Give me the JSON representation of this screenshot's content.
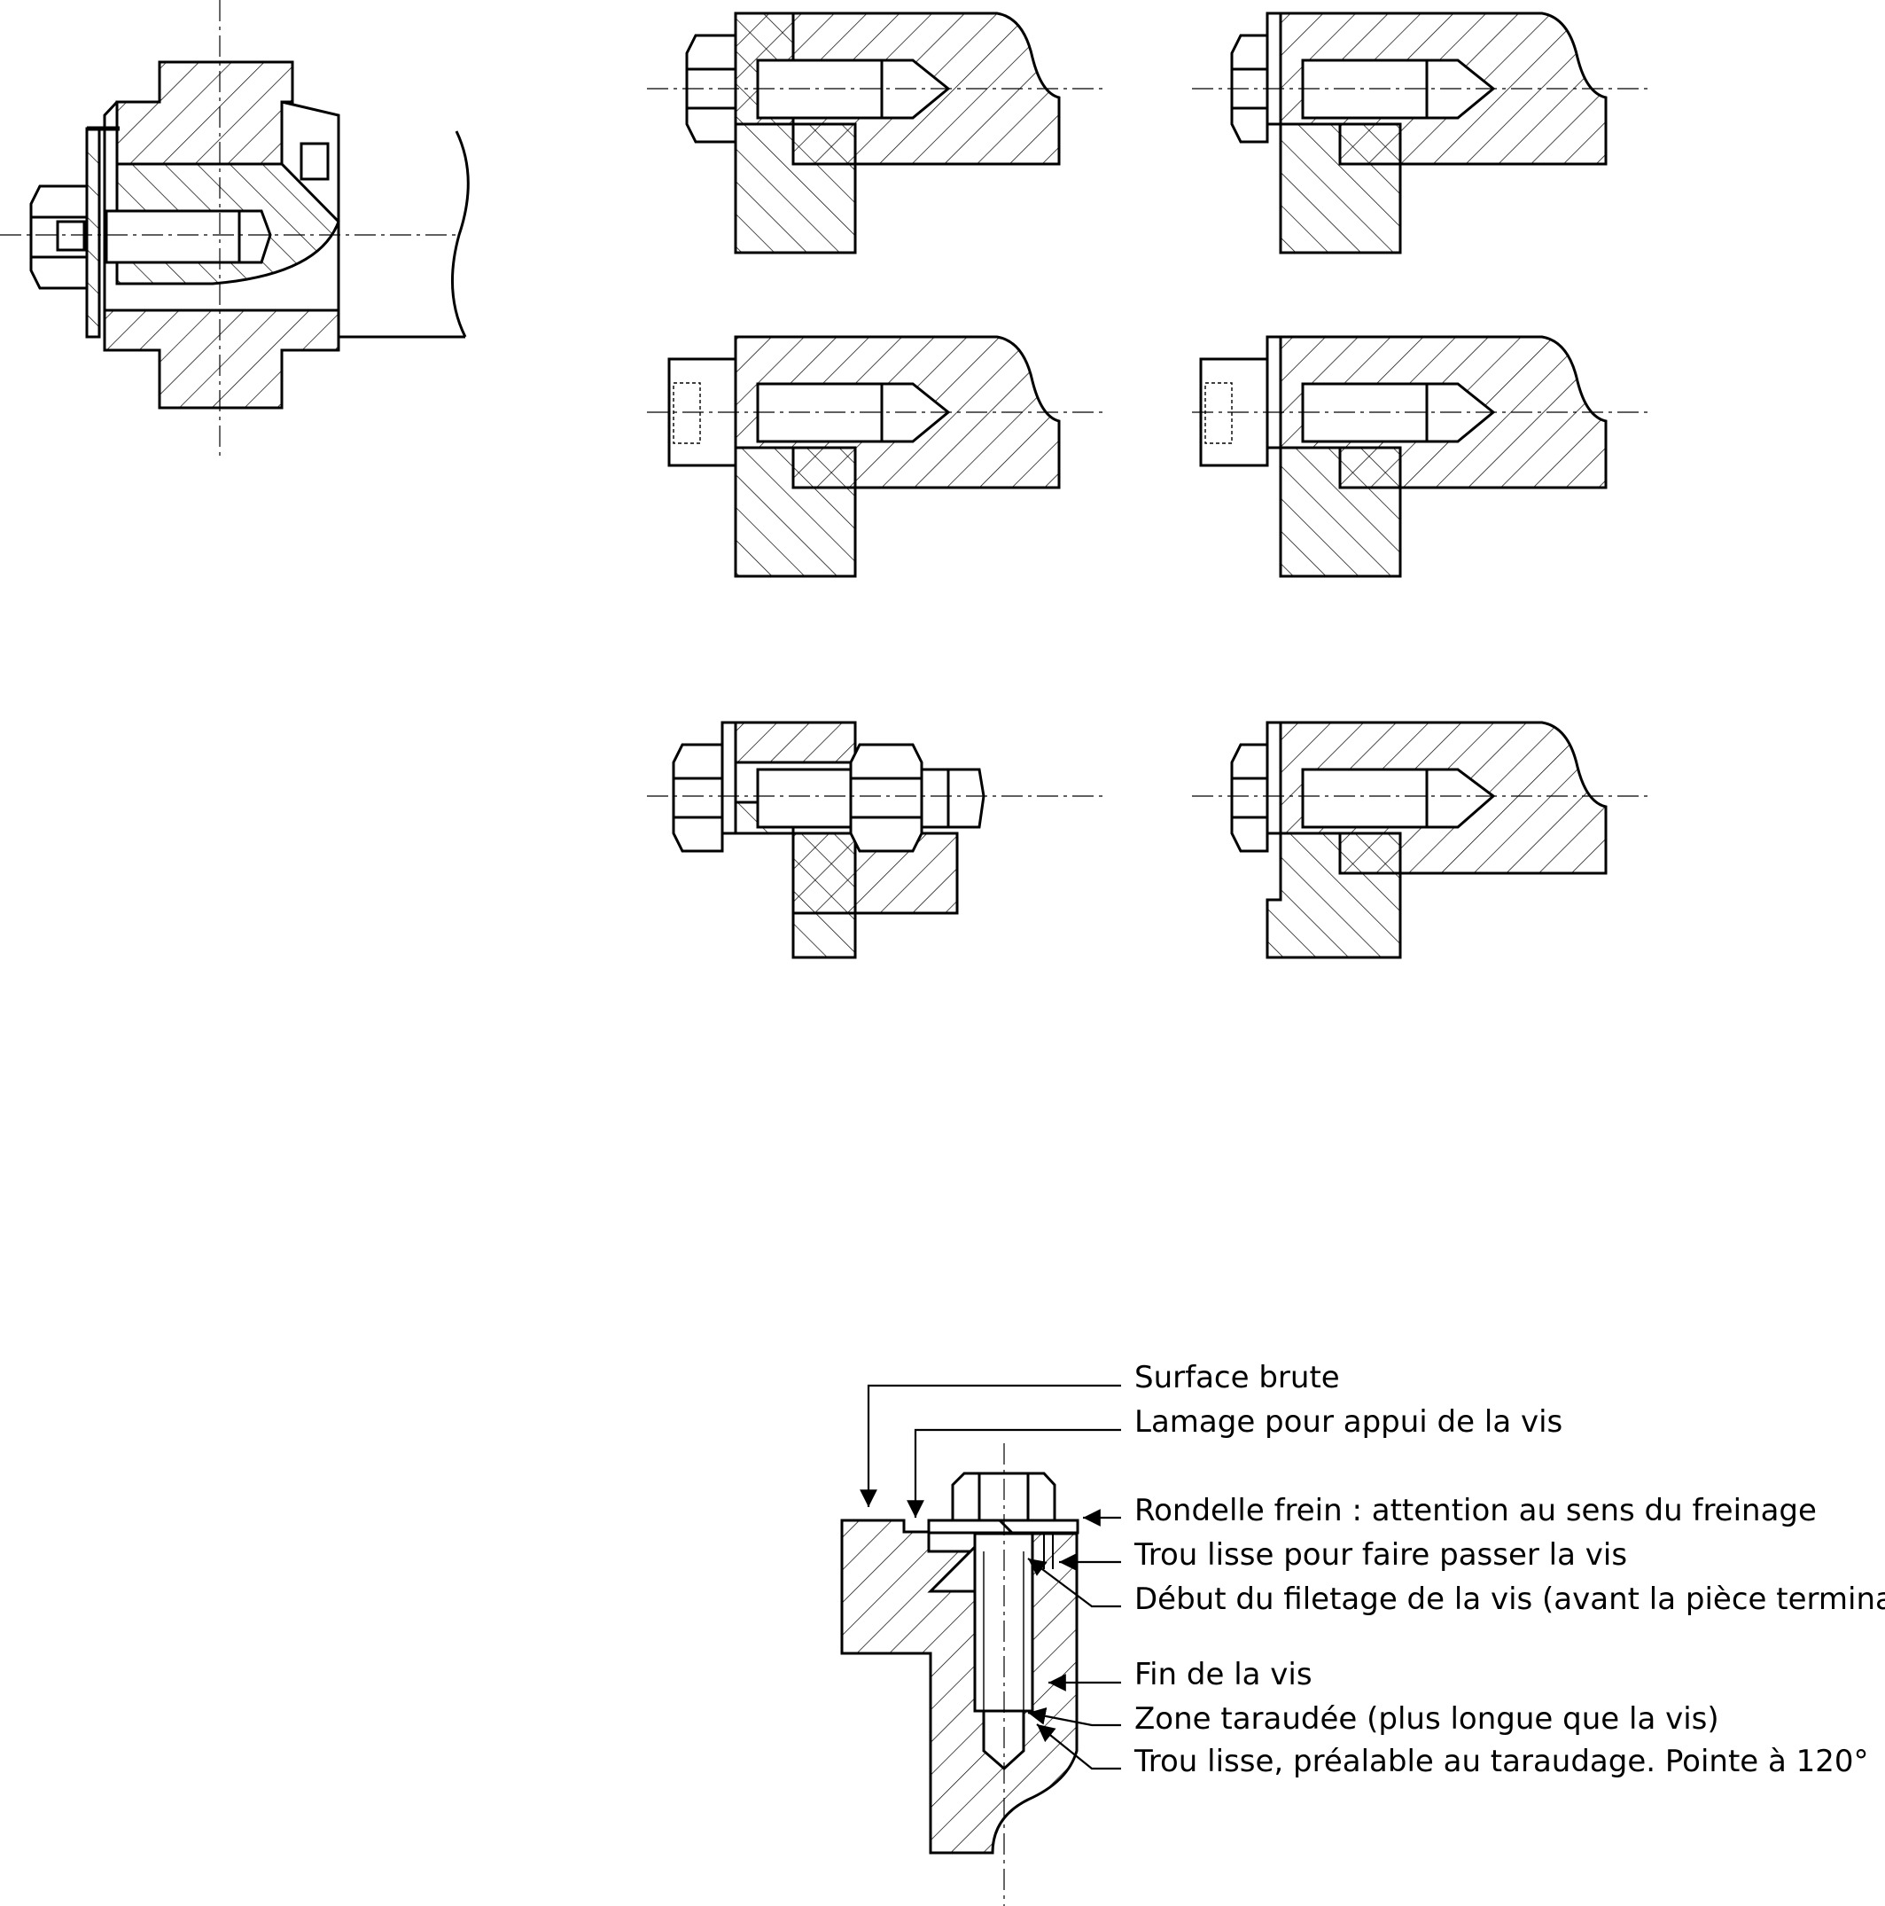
{
  "annotations": [
    {
      "id": "surface-brute",
      "text": "Surface brute"
    },
    {
      "id": "lamage",
      "text": "Lamage pour appui de la vis"
    },
    {
      "id": "rondelle",
      "text": "Rondelle frein : attention au sens du freinage"
    },
    {
      "id": "trou-lisse-passage",
      "text": "Trou lisse pour faire passer la vis"
    },
    {
      "id": "debut-filetage",
      "text": "Début du filetage de la vis (avant la pièce terminale)"
    },
    {
      "id": "fin-vis",
      "text": "Fin de la vis"
    },
    {
      "id": "zone-taraudee",
      "text": "Zone taraudée (plus longue que la vis)"
    },
    {
      "id": "trou-lisse-prealable",
      "text": "Trou lisse, préalable au taraudage. Pointe à 120°"
    }
  ],
  "colors": {
    "ink": "#000000",
    "background": "#ffffff"
  }
}
